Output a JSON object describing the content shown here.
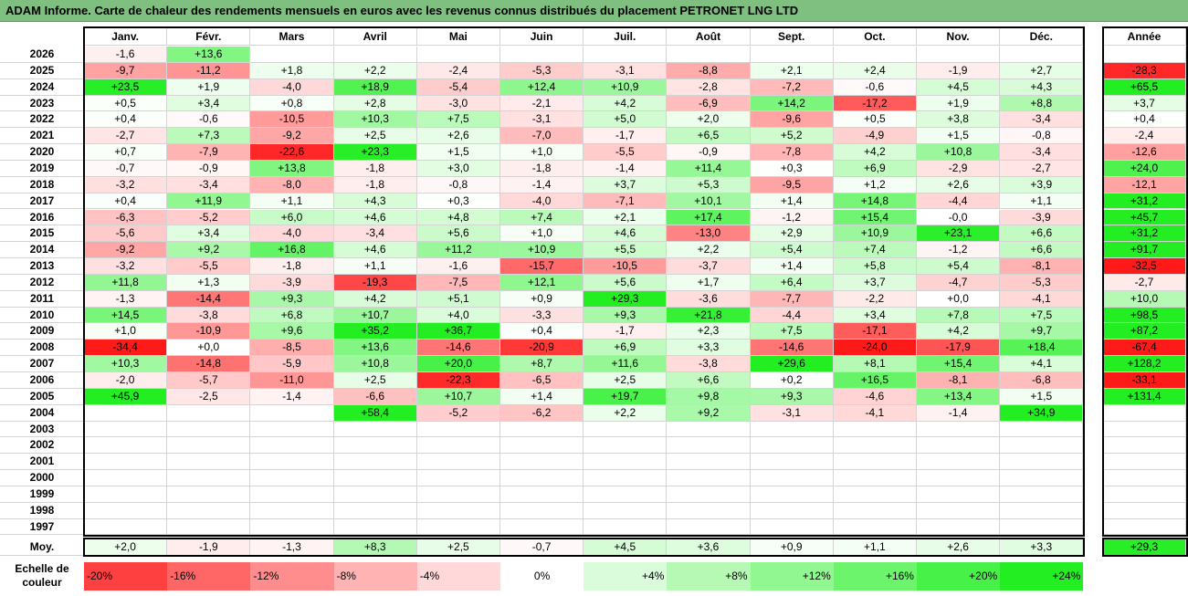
{
  "title": "ADAM Informe. Carte de chaleur des rendements mensuels en euros avec les revenus connus distribués du placement PETRONET LNG LTD",
  "months": [
    "Janv.",
    "Févr.",
    "Mars",
    "Avril",
    "Mai",
    "Juin",
    "Juil.",
    "Août",
    "Sept.",
    "Oct.",
    "Nov.",
    "Déc."
  ],
  "year_header": "Année",
  "avg_label": "Moy.",
  "scale_label": "Echelle de couleur",
  "chart_data": {
    "type": "heatmap",
    "unit": "%",
    "rows": [
      {
        "year": "2026",
        "months": [
          "-1,6",
          "+13,6",
          "",
          "",
          "",
          "",
          "",
          "",
          "",
          "",
          "",
          ""
        ],
        "annual": ""
      },
      {
        "year": "2025",
        "months": [
          "-9,7",
          "-11,2",
          "+1,8",
          "+2,2",
          "-2,4",
          "-5,3",
          "-3,1",
          "-8,8",
          "+2,1",
          "+2,4",
          "-1,9",
          "+2,7"
        ],
        "annual": "-28,3"
      },
      {
        "year": "2024",
        "months": [
          "+23,5",
          "+1,9",
          "-4,0",
          "+18,9",
          "-5,4",
          "+12,4",
          "+10,9",
          "-2,8",
          "-7,2",
          "-0,6",
          "+4,5",
          "+4,3"
        ],
        "annual": "+65,5"
      },
      {
        "year": "2023",
        "months": [
          "+0,5",
          "+3,4",
          "+0,8",
          "+2,8",
          "-3,0",
          "-2,1",
          "+4,2",
          "-6,9",
          "+14,2",
          "-17,2",
          "+1,9",
          "+8,8"
        ],
        "annual": "+3,7"
      },
      {
        "year": "2022",
        "months": [
          "+0,4",
          "-0,6",
          "-10,5",
          "+10,3",
          "+7,5",
          "-3,1",
          "+5,0",
          "+2,0",
          "-9,6",
          "+0,5",
          "+3,8",
          "-3,4"
        ],
        "annual": "+0,4"
      },
      {
        "year": "2021",
        "months": [
          "-2,7",
          "+7,3",
          "-9,2",
          "+2,5",
          "+2,6",
          "-7,0",
          "-1,7",
          "+6,5",
          "+5,2",
          "-4,9",
          "+1,5",
          "-0,8"
        ],
        "annual": "-2,4"
      },
      {
        "year": "2020",
        "months": [
          "+0,7",
          "-7,9",
          "-22,6",
          "+23,3",
          "+1,5",
          "+1,0",
          "-5,5",
          "-0,9",
          "-7,8",
          "+4,2",
          "+10,8",
          "-3,4"
        ],
        "annual": "-12,6"
      },
      {
        "year": "2019",
        "months": [
          "-0,7",
          "-0,9",
          "+13,8",
          "-1,8",
          "+3,0",
          "-1,8",
          "-1,4",
          "+11,4",
          "+0,3",
          "+6,9",
          "-2,9",
          "-2,7"
        ],
        "annual": "+24,0"
      },
      {
        "year": "2018",
        "months": [
          "-3,2",
          "-3,4",
          "-8,0",
          "-1,8",
          "-0,8",
          "-1,4",
          "+3,7",
          "+5,3",
          "-9,5",
          "+1,2",
          "+2,6",
          "+3,9"
        ],
        "annual": "-12,1"
      },
      {
        "year": "2017",
        "months": [
          "+0,4",
          "+11,9",
          "+1,1",
          "+4,3",
          "+0,3",
          "-4,0",
          "-7,1",
          "+10,1",
          "+1,4",
          "+14,8",
          "-4,4",
          "+1,1"
        ],
        "annual": "+31,2"
      },
      {
        "year": "2016",
        "months": [
          "-6,3",
          "-5,2",
          "+6,0",
          "+4,6",
          "+4,8",
          "+7,4",
          "+2,1",
          "+17,4",
          "-1,2",
          "+15,4",
          "-0,0",
          "-3,9"
        ],
        "annual": "+45,7"
      },
      {
        "year": "2015",
        "months": [
          "-5,6",
          "+3,4",
          "-4,0",
          "-3,4",
          "+5,6",
          "+1,0",
          "+4,6",
          "-13,0",
          "+2,9",
          "+10,9",
          "+23,1",
          "+6,6"
        ],
        "annual": "+31,2"
      },
      {
        "year": "2014",
        "months": [
          "-9,2",
          "+9,2",
          "+16,8",
          "+4,6",
          "+11,2",
          "+10,9",
          "+5,5",
          "+2,2",
          "+5,4",
          "+7,4",
          "-1,2",
          "+6,6"
        ],
        "annual": "+91,7"
      },
      {
        "year": "2013",
        "months": [
          "-3,2",
          "-5,5",
          "-1,8",
          "+1,1",
          "-1,6",
          "-15,7",
          "-10,5",
          "-3,7",
          "+1,4",
          "+5,8",
          "+5,4",
          "-8,1"
        ],
        "annual": "-32,5"
      },
      {
        "year": "2012",
        "months": [
          "+11,8",
          "+1,3",
          "-3,9",
          "-19,3",
          "-7,5",
          "+12,1",
          "+5,6",
          "+1,7",
          "+6,4",
          "+3,7",
          "-4,7",
          "-5,3"
        ],
        "annual": "-2,7"
      },
      {
        "year": "2011",
        "months": [
          "-1,3",
          "-14,4",
          "+9,3",
          "+4,2",
          "+5,1",
          "+0,9",
          "+29,3",
          "-3,6",
          "-7,7",
          "-2,2",
          "+0,0",
          "-4,1"
        ],
        "annual": "+10,0"
      },
      {
        "year": "2010",
        "months": [
          "+14,5",
          "-3,8",
          "+6,8",
          "+10,7",
          "+4,0",
          "-3,3",
          "+9,3",
          "+21,8",
          "-4,4",
          "+3,4",
          "+7,8",
          "+7,5"
        ],
        "annual": "+98,5"
      },
      {
        "year": "2009",
        "months": [
          "+1,0",
          "-10,9",
          "+9,6",
          "+35,2",
          "+36,7",
          "+0,4",
          "-1,7",
          "+2,3",
          "+7,5",
          "-17,1",
          "+4,2",
          "+9,7"
        ],
        "annual": "+87,2"
      },
      {
        "year": "2008",
        "months": [
          "-34,4",
          "+0,0",
          "-8,5",
          "+13,6",
          "-14,6",
          "-20,9",
          "+6,9",
          "+3,3",
          "-14,6",
          "-24,0",
          "-17,9",
          "+18,4"
        ],
        "annual": "-67,4"
      },
      {
        "year": "2007",
        "months": [
          "+10,3",
          "-14,8",
          "-5,9",
          "+10,8",
          "+20,0",
          "+8,7",
          "+11,6",
          "-3,8",
          "+29,6",
          "+8,1",
          "+15,4",
          "+4,1"
        ],
        "annual": "+128,2"
      },
      {
        "year": "2006",
        "months": [
          "-2,0",
          "-5,7",
          "-11,0",
          "+2,5",
          "-22,3",
          "-6,5",
          "+2,5",
          "+6,6",
          "+0,2",
          "+16,5",
          "-8,1",
          "-6,8"
        ],
        "annual": "-33,1"
      },
      {
        "year": "2005",
        "months": [
          "+45,9",
          "-2,5",
          "-1,4",
          "-6,6",
          "+10,7",
          "+1,4",
          "+19,7",
          "+9,8",
          "+9,3",
          "-4,6",
          "+13,4",
          "+1,5"
        ],
        "annual": "+131,4"
      },
      {
        "year": "2004",
        "months": [
          "",
          "",
          "",
          "+58,4",
          "-5,2",
          "-6,2",
          "+2,2",
          "+9,2",
          "-3,1",
          "-4,1",
          "-1,4",
          "+34,9"
        ],
        "annual": ""
      },
      {
        "year": "2003",
        "months": [
          "",
          "",
          "",
          "",
          "",
          "",
          "",
          "",
          "",
          "",
          "",
          ""
        ],
        "annual": ""
      },
      {
        "year": "2002",
        "months": [
          "",
          "",
          "",
          "",
          "",
          "",
          "",
          "",
          "",
          "",
          "",
          ""
        ],
        "annual": ""
      },
      {
        "year": "2001",
        "months": [
          "",
          "",
          "",
          "",
          "",
          "",
          "",
          "",
          "",
          "",
          "",
          ""
        ],
        "annual": ""
      },
      {
        "year": "2000",
        "months": [
          "",
          "",
          "",
          "",
          "",
          "",
          "",
          "",
          "",
          "",
          "",
          ""
        ],
        "annual": ""
      },
      {
        "year": "1999",
        "months": [
          "",
          "",
          "",
          "",
          "",
          "",
          "",
          "",
          "",
          "",
          "",
          ""
        ],
        "annual": ""
      },
      {
        "year": "1998",
        "months": [
          "",
          "",
          "",
          "",
          "",
          "",
          "",
          "",
          "",
          "",
          "",
          ""
        ],
        "annual": ""
      },
      {
        "year": "1997",
        "months": [
          "",
          "",
          "",
          "",
          "",
          "",
          "",
          "",
          "",
          "",
          "",
          ""
        ],
        "annual": ""
      }
    ],
    "averages": [
      "+2,0",
      "-1,9",
      "-1,3",
      "+8,3",
      "+2,5",
      "-0,7",
      "+4,5",
      "+3,6",
      "+0,9",
      "+1,1",
      "+2,6",
      "+3,3"
    ],
    "average_annual": "+29,3",
    "color_scale": [
      "-20%",
      "-16%",
      "-12%",
      "-8%",
      "-4%",
      "0%",
      "+4%",
      "+8%",
      "+12%",
      "+16%",
      "+20%",
      "+24%"
    ],
    "colors": {
      "negative_max": "#ff1a1a",
      "neutral": "#ffffff",
      "positive_max": "#22ee22",
      "title_bar": "#7fbf7f"
    }
  }
}
